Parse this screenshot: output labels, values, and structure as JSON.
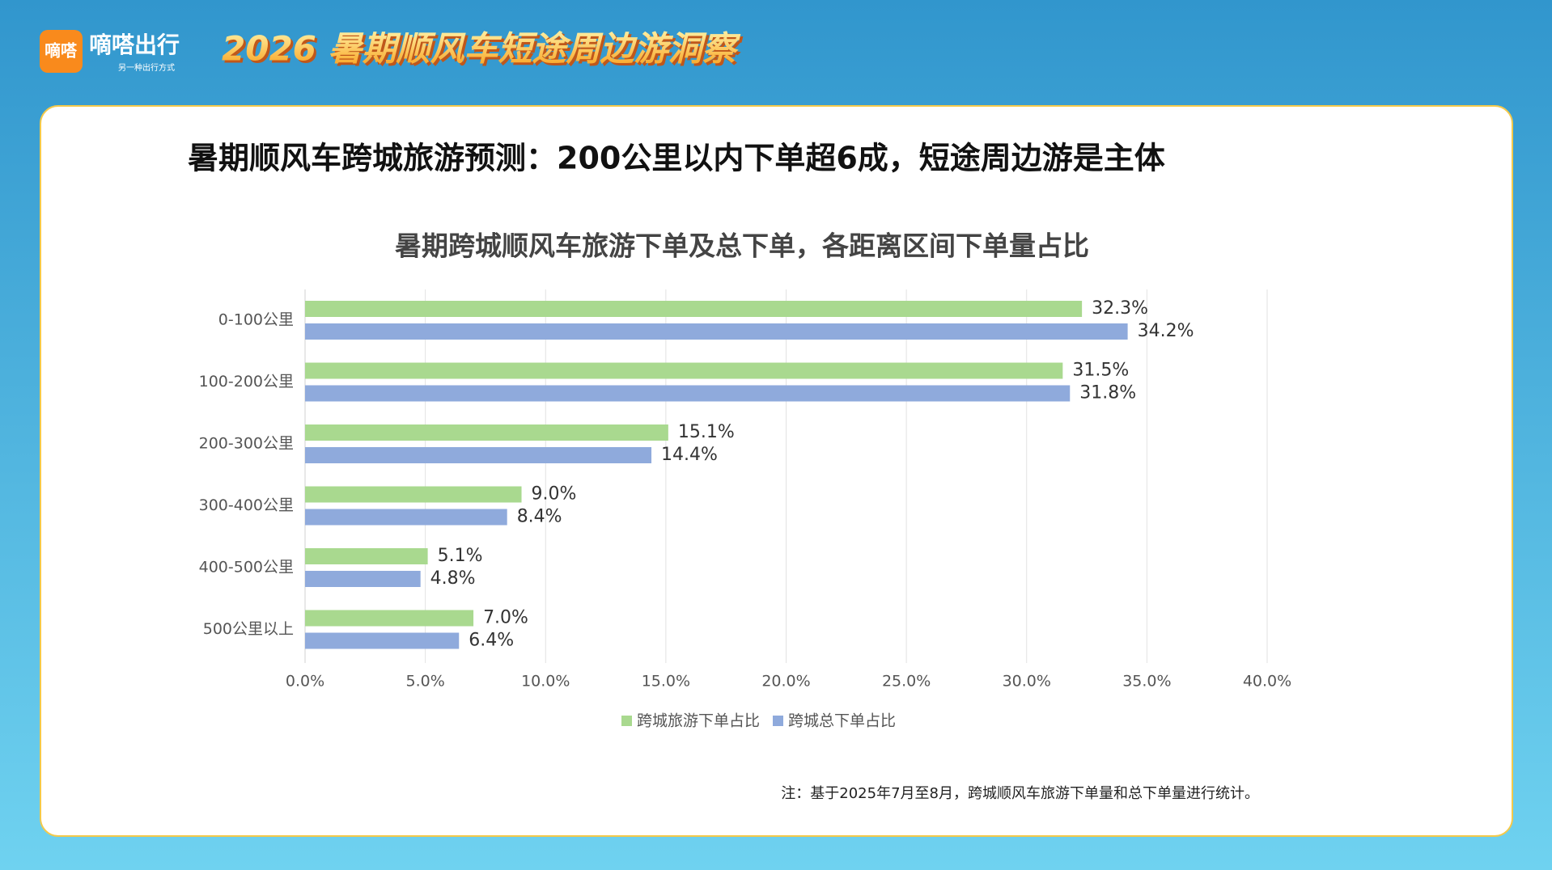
{
  "header": {
    "logo_icon": "嘀嗒",
    "brand": "嘀嗒出行",
    "slogan": "另一种出行方式",
    "title": "2026 暑期顺风车短途周边游洞察"
  },
  "headline": "暑期顺风车跨城旅游预测：200公里以内下单超6成，短途周边游是主体",
  "note": "注：基于2025年7月至8月，跨城顺风车旅游下单量和总下单量进行统计。",
  "chart_data": {
    "type": "hbar",
    "title": "暑期跨城顺风车旅游下单及总下单，各距离区间下单量占比",
    "categories": [
      "0-100公里",
      "100-200公里",
      "200-300公里",
      "300-400公里",
      "400-500公里",
      "500公里以上"
    ],
    "series": [
      {
        "name": "跨城旅游下单占比",
        "color": "#a9d98f",
        "values": [
          32.3,
          31.5,
          15.1,
          9.0,
          5.1,
          7.0
        ],
        "value_labels": [
          "32.3%",
          "31.5%",
          "15.1%",
          "9.0%",
          "5.1%",
          "7.0%"
        ]
      },
      {
        "name": "跨城总下单占比",
        "color": "#8faadc",
        "values": [
          34.2,
          31.8,
          14.4,
          8.4,
          4.8,
          6.4
        ],
        "value_labels": [
          "34.2%",
          "31.8%",
          "14.4%",
          "8.4%",
          "4.8%",
          "6.4%"
        ]
      }
    ],
    "xlim": [
      0,
      40
    ],
    "xticks": [
      {
        "value": 0,
        "label": "0.0%"
      },
      {
        "value": 5,
        "label": "5.0%"
      },
      {
        "value": 10,
        "label": "10.0%"
      },
      {
        "value": 15,
        "label": "15.0%"
      },
      {
        "value": 20,
        "label": "20.0%"
      },
      {
        "value": 25,
        "label": "25.0%"
      },
      {
        "value": 30,
        "label": "30.0%"
      },
      {
        "value": 35,
        "label": "35.0%"
      },
      {
        "value": 40,
        "label": "40.0%"
      }
    ],
    "grid": true,
    "legend": "bottom"
  }
}
